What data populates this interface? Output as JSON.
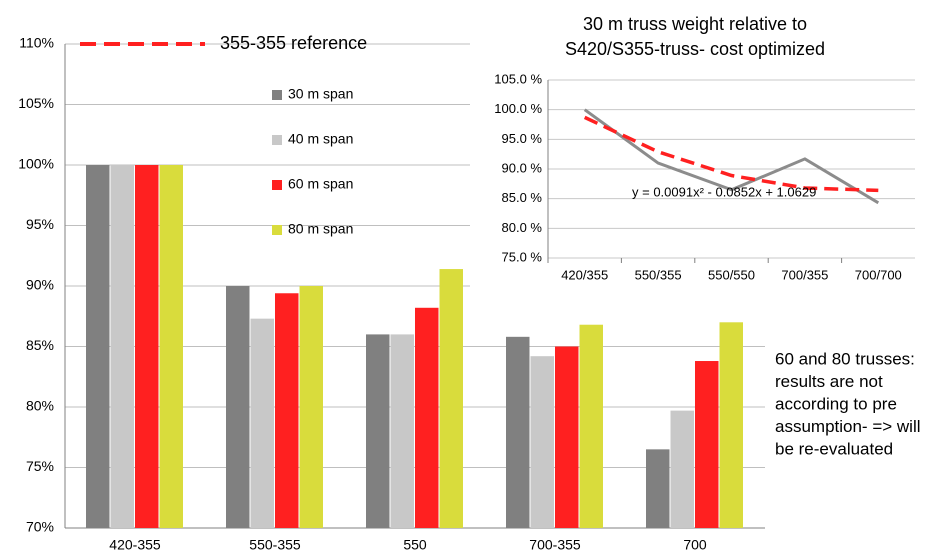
{
  "chart_data": [
    {
      "type": "bar",
      "categories": [
        "420-355",
        "550-355",
        "550",
        "700-355",
        "700"
      ],
      "series": [
        {
          "name": "30 m span",
          "color": "#808080",
          "values": [
            100,
            90,
            86,
            85.8,
            76.5
          ]
        },
        {
          "name": "40 m span",
          "color": "#c8c8c8",
          "values": [
            100,
            87.3,
            86,
            84.2,
            79.7
          ]
        },
        {
          "name": "60 m span",
          "color": "#ff2020",
          "values": [
            100,
            89.4,
            88.2,
            85,
            83.8
          ]
        },
        {
          "name": "80 m span",
          "color": "#d9dc3c",
          "values": [
            100,
            90,
            91.4,
            86.8,
            87
          ]
        }
      ],
      "ylim": [
        70,
        110
      ],
      "yticks": [
        {
          "value": 70,
          "label": "70%"
        },
        {
          "value": 75,
          "label": "75%"
        },
        {
          "value": 80,
          "label": "80%"
        },
        {
          "value": 85,
          "label": "85%"
        },
        {
          "value": 90,
          "label": "90%"
        },
        {
          "value": 95,
          "label": "95%"
        },
        {
          "value": 100,
          "label": "100%"
        },
        {
          "value": 105,
          "label": "105%"
        },
        {
          "value": 110,
          "label": "110%"
        }
      ],
      "grid": true,
      "reference": {
        "label": "355-355 reference",
        "value": 110,
        "color": "#ff2020"
      },
      "annotation": [
        "60 and 80 trusses:",
        "results are not",
        "according to pre",
        "assumption- => will",
        "be re-evaluated"
      ]
    },
    {
      "type": "line",
      "title": [
        "30 m truss weight relative to",
        "S420/S355-truss- cost optimized"
      ],
      "categories": [
        "420/355",
        "550/355",
        "550/550",
        "700/355",
        "700/700"
      ],
      "series": [
        {
          "color": "#8c8c8c",
          "values": [
            100,
            91,
            86.5,
            91.7,
            84.3
          ]
        },
        {
          "color": "#ff2020",
          "dashed": true,
          "values": [
            98.7,
            92.9,
            88.9,
            86.8,
            86.4
          ]
        }
      ],
      "ylim": [
        75,
        105
      ],
      "yticks": [
        {
          "value": 75,
          "label": "75.0 %"
        },
        {
          "value": 80,
          "label": "80.0 %"
        },
        {
          "value": 85,
          "label": "85.0 %"
        },
        {
          "value": 90,
          "label": "90.0 %"
        },
        {
          "value": 95,
          "label": "95.0 %"
        },
        {
          "value": 100,
          "label": "100.0 %"
        },
        {
          "value": 105,
          "label": "105.0 %"
        }
      ],
      "grid": true,
      "annotation": "y = 0.0091x² - 0.0852x + 1.0629"
    }
  ]
}
